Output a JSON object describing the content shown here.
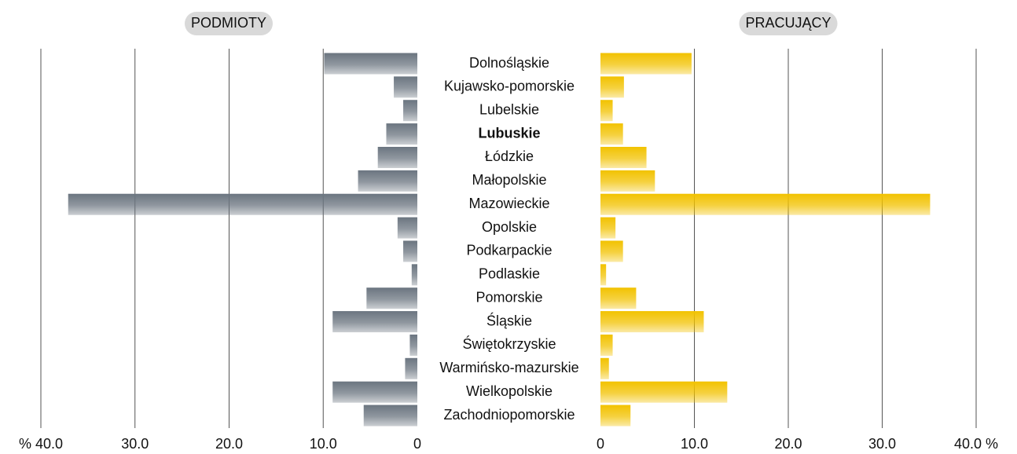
{
  "chart_data": {
    "type": "butterfly-bar",
    "categories": [
      "Dolnośląskie",
      "Kujawsko-pomorskie",
      "Lubelskie",
      "Lubuskie",
      "Łódzkie",
      "Małopolskie",
      "Mazowieckie",
      "Opolskie",
      "Podkarpackie",
      "Podlaskie",
      "Pomorskie",
      "Śląskie",
      "Świętokrzyskie",
      "Warmińsko-mazurskie",
      "Wielkopolskie",
      "Zachodniopomorskie"
    ],
    "bold_category": "Lubuskie",
    "series": [
      {
        "name": "PODMIOTY",
        "color": "#6b7580",
        "side": "left",
        "values": [
          9.9,
          2.5,
          1.5,
          3.3,
          4.2,
          6.3,
          37.1,
          2.1,
          1.5,
          0.6,
          5.4,
          9.0,
          0.8,
          1.3,
          9.0,
          5.7
        ]
      },
      {
        "name": "PRACUJĄCY",
        "color": "#f2c200",
        "side": "right",
        "values": [
          9.7,
          2.5,
          1.3,
          2.4,
          4.9,
          5.8,
          35.1,
          1.6,
          2.4,
          0.6,
          3.8,
          11.0,
          1.3,
          0.9,
          13.5,
          3.2
        ]
      }
    ],
    "xlim_left": [
      0,
      40
    ],
    "xticks_left": [
      {
        "value": 40,
        "label": "% 40.0"
      },
      {
        "value": 30,
        "label": "30.0"
      },
      {
        "value": 20,
        "label": "20.0"
      },
      {
        "value": 10,
        "label": "10.0"
      },
      0
    ],
    "xlim_right": [
      0,
      40
    ],
    "xticks_right": [
      0,
      {
        "value": 10,
        "label": "10.0"
      },
      {
        "value": 20,
        "label": "20.0"
      },
      {
        "value": 30,
        "label": "30.0"
      },
      {
        "value": 40,
        "label": "40.0 %"
      }
    ],
    "grid": true
  }
}
